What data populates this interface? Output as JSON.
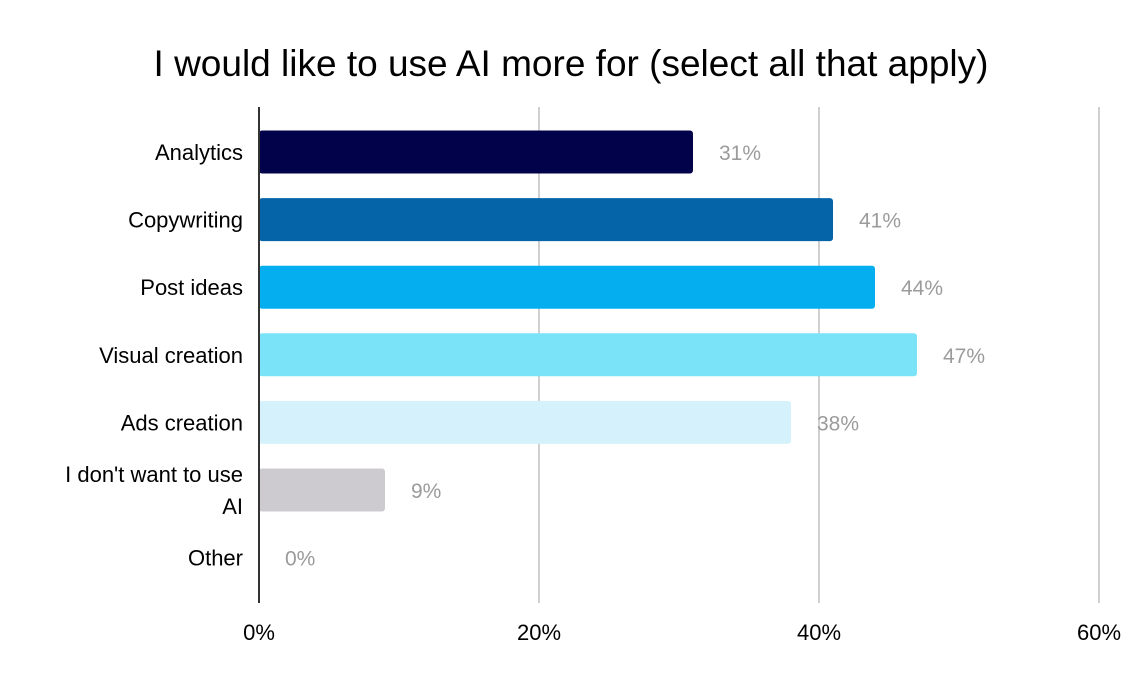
{
  "chart_data": {
    "type": "bar",
    "orientation": "horizontal",
    "title": "I would like to use AI more for (select all that apply)",
    "xlabel": "",
    "ylabel": "",
    "categories": [
      [
        "Analytics"
      ],
      [
        "Copywriting"
      ],
      [
        "Post ideas"
      ],
      [
        "Visual creation"
      ],
      [
        "Ads creation"
      ],
      [
        "I don't want to use",
        "AI"
      ],
      [
        "Other"
      ]
    ],
    "values": [
      31,
      41,
      44,
      47,
      38,
      9,
      0
    ],
    "value_labels": [
      "31%",
      "41%",
      "44%",
      "47%",
      "38%",
      "9%",
      "0%"
    ],
    "bar_colors": [
      "#02024a",
      "#0564a7",
      "#05aeef",
      "#7ae3f8",
      "#d5f2fc",
      "#cdcbcf",
      "#cccccc"
    ],
    "xlim": [
      0,
      60
    ],
    "xticks": [
      0,
      20,
      40,
      60
    ],
    "xtick_labels": [
      "0%",
      "20%",
      "40%",
      "60%"
    ],
    "grid": true,
    "legend": "none"
  }
}
